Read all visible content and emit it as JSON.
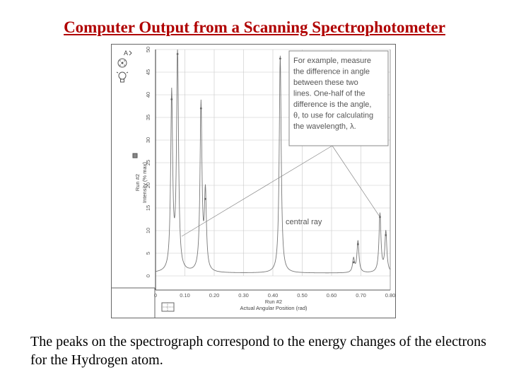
{
  "slide": {
    "title": "Computer Output from a Scanning Spectrophotometer",
    "caption": "The peaks on the spectrograph correspond to the energy changes of the electrons for the Hydrogen atom."
  },
  "figure": {
    "annotation_lines": [
      "For example, measure",
      "the difference in angle",
      "between these two",
      "lines. One-half of the",
      "difference is the angle,",
      "θ, to use for calculating",
      "the wavelength, λ."
    ],
    "central_ray_label": "central ray",
    "icons": [
      "a-icon",
      "target-icon",
      "lightbulb-icon",
      "grid-icon"
    ]
  },
  "chart_data": {
    "type": "line",
    "xlabel_run": "Run #2",
    "xlabel": "Actual Angular Position (rad)",
    "ylabel_run": "Run #2",
    "ylabel": "Intensity (% max)",
    "xlim": [
      0.0,
      0.8
    ],
    "ylim": [
      0,
      50
    ],
    "x_ticks": [
      "0",
      "0.10",
      "0.20",
      "0.30",
      "0.40",
      "0.50",
      "0.60",
      "0.70",
      "0.80"
    ],
    "y_ticks": [
      "0",
      "5",
      "10",
      "15",
      "20",
      "25",
      "30",
      "35",
      "40",
      "45",
      "50"
    ],
    "grid": true,
    "peaks": [
      {
        "x": 0.055,
        "y": 39
      },
      {
        "x": 0.075,
        "y": 49
      },
      {
        "x": 0.155,
        "y": 37
      },
      {
        "x": 0.17,
        "y": 17
      },
      {
        "x": 0.425,
        "y": 48
      },
      {
        "x": 0.675,
        "y": 3
      },
      {
        "x": 0.69,
        "y": 7
      },
      {
        "x": 0.765,
        "y": 13
      },
      {
        "x": 0.785,
        "y": 9
      }
    ],
    "baseline": 0,
    "accent_color": "#b00000"
  }
}
